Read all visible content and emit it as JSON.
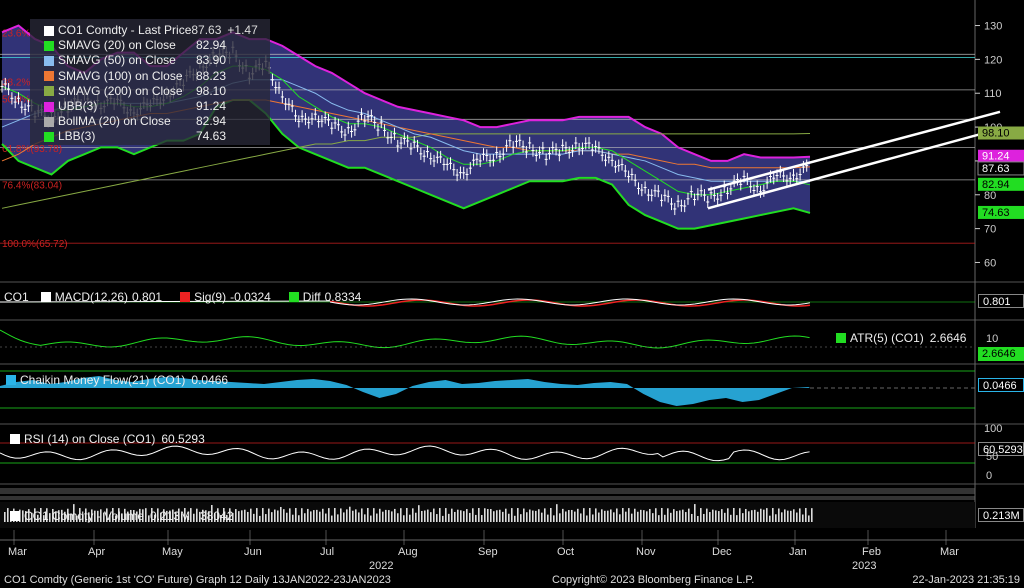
{
  "chart_data": {
    "type": "candlestick",
    "title": "CO1 Comdty (Generic 1st 'CO' Future) Graph 12  Daily 13JAN2022-23JAN2023",
    "x_labels": [
      "Mar",
      "Apr",
      "May",
      "Jun",
      "Jul",
      "Aug",
      "Sep",
      "Oct",
      "Nov",
      "Dec",
      "Jan",
      "Feb",
      "Mar"
    ],
    "x_year_labels": [
      "2022",
      "2023"
    ],
    "y_ticks": [
      130,
      120,
      110,
      100,
      90,
      80,
      70,
      60
    ],
    "ylim": [
      56,
      134
    ],
    "fib_levels": [
      {
        "label": "23.6%",
        "price": 128
      },
      {
        "label": "38.2%",
        "price": 113.5
      },
      {
        "label": "50.0%",
        "price": 108.5
      },
      {
        "label": "61.8%(93.78)",
        "price": 93.78
      },
      {
        "label": "76.4%(83.04)",
        "price": 83.04
      },
      {
        "label": "100.0%(65.72)",
        "price": 65.72
      }
    ],
    "horizontal_lines": [
      121.5,
      111,
      102.3,
      94,
      84.4,
      65.7
    ],
    "series": [
      {
        "name": "Last Price",
        "values": [
          112,
          108,
          104,
          103,
          106,
          108,
          107,
          107,
          105,
          106,
          110,
          113,
          118,
          121,
          122,
          116,
          118,
          110,
          101,
          104,
          100,
          99,
          103,
          100,
          96,
          94,
          92,
          88,
          87,
          90,
          92,
          95,
          94,
          92,
          93,
          95,
          93,
          91,
          85,
          82,
          79,
          77,
          80,
          79,
          82,
          84,
          82,
          85,
          86,
          87.63
        ]
      },
      {
        "name": "SMAVG (20)",
        "values": [
          112,
          110,
          107,
          105,
          105,
          106,
          107,
          107,
          106,
          106,
          107,
          109,
          112,
          116,
          118,
          118,
          117,
          114,
          109,
          106,
          103,
          101,
          101,
          100,
          98,
          96,
          94,
          91,
          89,
          89,
          90,
          92,
          93,
          93,
          93,
          94,
          94,
          93,
          90,
          87,
          84,
          81,
          80,
          80,
          81,
          82,
          83,
          84,
          84,
          82.94
        ]
      },
      {
        "name": "SMAVG (50)",
        "values": [
          100,
          102,
          104,
          105,
          106,
          106,
          107,
          107,
          107,
          107,
          107,
          108,
          109,
          111,
          113,
          114,
          114,
          114,
          112,
          110,
          107,
          105,
          104,
          102,
          100,
          98,
          97,
          95,
          93,
          92,
          92,
          92,
          92,
          92,
          92,
          93,
          93,
          92,
          91,
          90,
          88,
          86,
          85,
          84,
          84,
          84,
          84,
          84,
          84,
          83.9
        ]
      },
      {
        "name": "SMAVG (100)",
        "values": [
          90,
          92,
          95,
          97,
          99,
          100,
          101,
          102,
          103,
          104,
          104,
          105,
          106,
          107,
          108,
          108,
          108,
          107,
          106,
          105,
          104,
          103,
          102,
          101,
          100,
          99,
          98,
          97,
          96,
          95,
          94,
          94,
          93,
          93,
          93,
          93,
          93,
          92,
          92,
          91,
          90,
          89,
          89,
          88,
          88,
          88,
          88,
          88,
          88,
          88.23
        ]
      },
      {
        "name": "SMAVG (200)",
        "values": [
          76,
          77,
          78,
          79,
          80,
          81,
          82,
          83,
          84,
          85,
          86,
          87,
          88,
          89,
          90,
          91,
          92,
          93,
          94,
          95,
          95,
          96,
          96,
          97,
          97,
          97,
          98,
          98,
          98,
          98,
          98,
          98,
          98,
          98,
          98,
          98,
          98,
          98,
          98,
          98,
          98,
          98,
          98,
          98,
          98,
          98,
          98,
          98,
          98,
          98.1
        ]
      },
      {
        "name": "UBB(3)",
        "values": [
          128,
          130,
          126,
          124,
          118,
          116,
          120,
          122,
          122,
          118,
          118,
          122,
          126,
          126,
          128,
          126,
          126,
          124,
          121,
          118,
          116,
          113,
          110,
          108,
          106,
          105,
          104,
          103,
          102,
          100,
          100,
          101,
          102,
          102,
          102,
          103,
          103,
          103,
          103,
          100,
          98,
          94,
          92,
          90,
          90,
          92,
          91,
          91,
          91,
          91.24
        ]
      },
      {
        "name": "BollMA (20)",
        "values": [
          112,
          110,
          107,
          105,
          105,
          106,
          107,
          107,
          106,
          106,
          107,
          109,
          112,
          116,
          118,
          118,
          117,
          114,
          109,
          106,
          103,
          101,
          101,
          100,
          98,
          96,
          94,
          91,
          89,
          89,
          90,
          92,
          93,
          93,
          93,
          94,
          94,
          93,
          90,
          87,
          84,
          81,
          80,
          80,
          81,
          82,
          83,
          84,
          84,
          82.94
        ]
      },
      {
        "name": "LBB(3)",
        "values": [
          95,
          90,
          88,
          86,
          90,
          92,
          94,
          94,
          92,
          94,
          96,
          96,
          98,
          106,
          108,
          108,
          104,
          98,
          94,
          92,
          90,
          88,
          88,
          86,
          84,
          82,
          80,
          78,
          76,
          78,
          80,
          82,
          84,
          84,
          84,
          85,
          85,
          83,
          77,
          74,
          72,
          70,
          70,
          71,
          72,
          73,
          74,
          75,
          76,
          74.63
        ]
      }
    ],
    "legend": {
      "placement": "top-left"
    },
    "grid": false
  },
  "legend": {
    "header": {
      "name": "CO1 Comdty - Last Price",
      "val": "87.63",
      "chg": "+1.47",
      "color": "#ffffff"
    },
    "items": [
      {
        "name": "SMAVG (20)  on Close",
        "val": "82.94",
        "color": "#22dd22"
      },
      {
        "name": "SMAVG (50)  on Close",
        "val": "83.90",
        "color": "#88bbee"
      },
      {
        "name": "SMAVG (100)  on Close",
        "val": "88.23",
        "color": "#ee7733"
      },
      {
        "name": "SMAVG (200)  on Close",
        "val": "98.10",
        "color": "#88aa44"
      },
      {
        "name": "UBB(3)",
        "val": "91.24",
        "color": "#dd22dd"
      },
      {
        "name": "BollMA (20)  on Close",
        "val": "82.94",
        "color": "#aaaaaa"
      },
      {
        "name": "LBB(3)",
        "val": "74.63",
        "color": "#22dd22"
      }
    ]
  },
  "price_tags": [
    {
      "text": "98.10",
      "price": 98.1,
      "bg": "#88aa44",
      "fg": "#000"
    },
    {
      "text": "91.24",
      "price": 91.24,
      "bg": "#dd22dd",
      "fg": "#fff"
    },
    {
      "text": "87.63",
      "price": 87.63,
      "bg": "#000",
      "fg": "#fff"
    },
    {
      "text": "82.94",
      "price": 82.94,
      "bg": "#22dd22",
      "fg": "#000"
    },
    {
      "text": "74.63",
      "price": 74.63,
      "bg": "#22dd22",
      "fg": "#000"
    }
  ],
  "macd": {
    "label": "CO1",
    "name": "MACD(12,26)",
    "val": "0.801",
    "sig_name": "Sig(9)",
    "sig_val": "-0.0324",
    "diff_name": "Diff",
    "diff_val": "0.8334",
    "tag": "0.801",
    "colors": {
      "macd": "#ffffff",
      "sig": "#ee2222",
      "diff": "#22dd22"
    }
  },
  "atr": {
    "name": "ATR(5) (CO1)",
    "val": "2.6646",
    "tag": "2.6646",
    "axis": "10",
    "color": "#22dd22"
  },
  "cmf": {
    "name": "Chaikin Money Flow(21) (CO1)",
    "val": "0.0466",
    "tag": "0.0466",
    "color": "#2ab4e8"
  },
  "rsi": {
    "name": "RSI (14)  on Close (CO1)",
    "val": "60.5293",
    "tag": "60.5293",
    "axis_top": "100",
    "axis_mid": "50",
    "axis_bot": "0"
  },
  "volume": {
    "name": "CO1 Comdty - Volume",
    "val": "0.213M",
    "extra": "38042",
    "tag": "0.213M",
    "tag_val": "0.213M"
  },
  "footer": {
    "left": "CO1 Comdty (Generic 1st 'CO' Future) Graph 12  Daily 13JAN2022-23JAN2023",
    "center": "Copyright© 2023 Bloomberg Finance L.P.",
    "right": "22-Jan-2023 21:35:19"
  },
  "colors": {
    "band_fill": "#3a3c8c",
    "fib": "#cc2222",
    "hline": "#cccccc"
  }
}
